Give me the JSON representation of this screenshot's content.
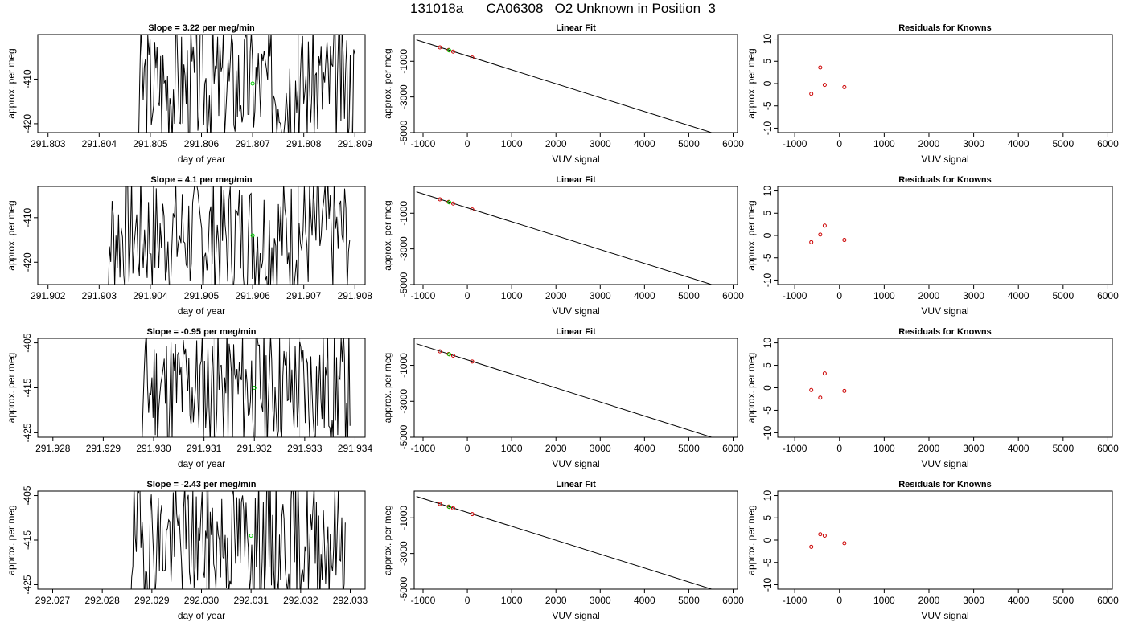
{
  "page": {
    "title": "131018a      CA06308   O2 Unknown in Position  3"
  },
  "chart_data": [
    {
      "type": "line",
      "row": 1,
      "col": 1,
      "title": "Slope =  3.22  per meg/min",
      "xlabel": "day of year",
      "ylabel": "approx. per meg",
      "xlim": [
        291.8028,
        291.8092
      ],
      "ylim": [
        -422,
        -400
      ],
      "xticks": [
        "291.803",
        "291.804",
        "291.805",
        "291.806",
        "291.807",
        "291.808",
        "291.809"
      ],
      "yticks": [
        "-410",
        "-420"
      ],
      "vlines": [
        291.8062,
        291.8079
      ],
      "series_color": "#000000",
      "series": [
        {
          "x_start": 291.8047,
          "x_end": 291.809,
          "seed": 3,
          "values_note": "dense noisy trace"
        }
      ],
      "markers": [
        {
          "x": 291.807,
          "y": -411,
          "color": "#00cc00"
        }
      ]
    },
    {
      "type": "scatter",
      "row": 1,
      "col": 2,
      "title": "Linear Fit",
      "xlabel": "VUV signal",
      "ylabel": "approx. per meg",
      "xlim": [
        -1200,
        6100
      ],
      "ylim": [
        -5000,
        500
      ],
      "xticks": [
        "-1000",
        "0",
        "1000",
        "2000",
        "3000",
        "4000",
        "5000",
        "6000"
      ],
      "yticks": [
        "-1000",
        "-3000",
        "-5000"
      ],
      "line": {
        "x": [
          -1150,
          5900
        ],
        "y": [
          200,
          -5300
        ]
      },
      "points": [
        {
          "x": -620,
          "y": -220
        },
        {
          "x": -420,
          "y": -370
        },
        {
          "x": -320,
          "y": -460
        },
        {
          "x": 110,
          "y": -790
        }
      ],
      "unknown": {
        "x": -410,
        "y": -390
      }
    },
    {
      "type": "scatter",
      "row": 1,
      "col": 3,
      "title": "Residuals for Knowns",
      "xlabel": "VUV signal",
      "ylabel": "approx. per meg",
      "xlim": [
        -1380,
        6100
      ],
      "ylim": [
        -11,
        11
      ],
      "xticks": [
        "-1000",
        "0",
        "1000",
        "2000",
        "3000",
        "4000",
        "5000",
        "6000"
      ],
      "yticks": [
        "10",
        "5",
        "0",
        "-5",
        "-10"
      ],
      "points": [
        {
          "x": -630,
          "y": -2.3
        },
        {
          "x": -430,
          "y": 3.6
        },
        {
          "x": -330,
          "y": -0.3
        },
        {
          "x": 110,
          "y": -0.8
        }
      ]
    },
    {
      "type": "line",
      "row": 2,
      "col": 1,
      "title": "Slope =  4.1  per meg/min",
      "xlabel": "day of year",
      "ylabel": "approx. per meg",
      "xlim": [
        291.9018,
        291.9082
      ],
      "ylim": [
        -425,
        -403
      ],
      "xticks": [
        "291.902",
        "291.903",
        "291.904",
        "291.905",
        "291.906",
        "291.907",
        "291.908"
      ],
      "yticks": [
        "-410",
        "-420"
      ],
      "vlines": [
        291.9052,
        291.9069
      ],
      "series_color": "#000000",
      "series": [
        {
          "x_start": 291.9031,
          "x_end": 291.9079,
          "seed": 7
        }
      ],
      "markers": [
        {
          "x": 291.906,
          "y": -414,
          "color": "#00cc00"
        }
      ]
    },
    {
      "type": "scatter",
      "row": 2,
      "col": 2,
      "title": "Linear Fit",
      "xlabel": "VUV signal",
      "ylabel": "approx. per meg",
      "xlim": [
        -1200,
        6100
      ],
      "ylim": [
        -5000,
        500
      ],
      "xticks": [
        "-1000",
        "0",
        "1000",
        "2000",
        "3000",
        "4000",
        "5000",
        "6000"
      ],
      "yticks": [
        "-1000",
        "-3000",
        "-5000"
      ],
      "line": {
        "x": [
          -1150,
          5900
        ],
        "y": [
          200,
          -5300
        ]
      },
      "points": [
        {
          "x": -620,
          "y": -220
        },
        {
          "x": -420,
          "y": -370
        },
        {
          "x": -320,
          "y": -460
        },
        {
          "x": 110,
          "y": -790
        }
      ],
      "unknown": {
        "x": -410,
        "y": -390
      }
    },
    {
      "type": "scatter",
      "row": 2,
      "col": 3,
      "title": "Residuals for Knowns",
      "xlabel": "VUV signal",
      "ylabel": "approx. per meg",
      "xlim": [
        -1380,
        6100
      ],
      "ylim": [
        -11,
        11
      ],
      "xticks": [
        "-1000",
        "0",
        "1000",
        "2000",
        "3000",
        "4000",
        "5000",
        "6000"
      ],
      "yticks": [
        "10",
        "5",
        "0",
        "-5",
        "-10"
      ],
      "points": [
        {
          "x": -630,
          "y": -1.5
        },
        {
          "x": -430,
          "y": 0.2
        },
        {
          "x": -330,
          "y": 2.2
        },
        {
          "x": 110,
          "y": -1.0
        }
      ]
    },
    {
      "type": "line",
      "row": 3,
      "col": 1,
      "title": "Slope =  -0.95  per meg/min",
      "xlabel": "day of year",
      "ylabel": "approx. per meg",
      "xlim": [
        291.9277,
        291.9342
      ],
      "ylim": [
        -426,
        -404
      ],
      "xticks": [
        "291.928",
        "291.929",
        "291.930",
        "291.931",
        "291.932",
        "291.933",
        "291.934"
      ],
      "yticks": [
        "-405",
        "-415",
        "-425"
      ],
      "vlines": [
        291.9312,
        291.9329
      ],
      "series_color": "#000000",
      "series": [
        {
          "x_start": 291.9297,
          "x_end": 291.9339,
          "seed": 11
        }
      ],
      "markers": [
        {
          "x": 291.932,
          "y": -415,
          "color": "#00cc00"
        }
      ]
    },
    {
      "type": "scatter",
      "row": 3,
      "col": 2,
      "title": "Linear Fit",
      "xlabel": "VUV signal",
      "ylabel": "approx. per meg",
      "xlim": [
        -1200,
        6100
      ],
      "ylim": [
        -5000,
        500
      ],
      "xticks": [
        "-1000",
        "0",
        "1000",
        "2000",
        "3000",
        "4000",
        "5000",
        "6000"
      ],
      "yticks": [
        "-1000",
        "-3000",
        "-5000"
      ],
      "line": {
        "x": [
          -1150,
          5900
        ],
        "y": [
          200,
          -5300
        ]
      },
      "points": [
        {
          "x": -620,
          "y": -220
        },
        {
          "x": -420,
          "y": -370
        },
        {
          "x": -320,
          "y": -460
        },
        {
          "x": 110,
          "y": -790
        }
      ],
      "unknown": {
        "x": -410,
        "y": -390
      }
    },
    {
      "type": "scatter",
      "row": 3,
      "col": 3,
      "title": "Residuals for Knowns",
      "xlabel": "VUV signal",
      "ylabel": "approx. per meg",
      "xlim": [
        -1380,
        6100
      ],
      "ylim": [
        -11,
        11
      ],
      "xticks": [
        "-1000",
        "0",
        "1000",
        "2000",
        "3000",
        "4000",
        "5000",
        "6000"
      ],
      "yticks": [
        "10",
        "5",
        "0",
        "-5",
        "-10"
      ],
      "points": [
        {
          "x": -630,
          "y": -0.5
        },
        {
          "x": -430,
          "y": -2.2
        },
        {
          "x": -330,
          "y": 3.2
        },
        {
          "x": 110,
          "y": -0.7
        }
      ]
    },
    {
      "type": "line",
      "row": 4,
      "col": 1,
      "title": "Slope =  -2.43  per meg/min",
      "xlabel": "day of year",
      "ylabel": "approx. per meg",
      "xlim": [
        292.0267,
        292.0333
      ],
      "ylim": [
        -426,
        -404
      ],
      "xticks": [
        "292.027",
        "292.028",
        "292.029",
        "292.030",
        "292.031",
        "292.032",
        "292.033"
      ],
      "yticks": [
        "-405",
        "-415",
        "-425"
      ],
      "vlines": [
        292.0301,
        292.0318
      ],
      "series_color": "#000000",
      "series": [
        {
          "x_start": 292.0285,
          "x_end": 292.0329,
          "seed": 19
        }
      ],
      "markers": [
        {
          "x": 292.031,
          "y": -414,
          "color": "#00cc00"
        }
      ]
    },
    {
      "type": "scatter",
      "row": 4,
      "col": 2,
      "title": "Linear Fit",
      "xlabel": "VUV signal",
      "ylabel": "approx. per meg",
      "xlim": [
        -1200,
        6100
      ],
      "ylim": [
        -5000,
        500
      ],
      "xticks": [
        "-1000",
        "0",
        "1000",
        "2000",
        "3000",
        "4000",
        "5000",
        "6000"
      ],
      "yticks": [
        "-1000",
        "-3000",
        "-5000"
      ],
      "line": {
        "x": [
          -1150,
          5900
        ],
        "y": [
          200,
          -5300
        ]
      },
      "points": [
        {
          "x": -620,
          "y": -220
        },
        {
          "x": -420,
          "y": -370
        },
        {
          "x": -320,
          "y": -460
        },
        {
          "x": 110,
          "y": -790
        }
      ],
      "unknown": {
        "x": -410,
        "y": -390
      }
    },
    {
      "type": "scatter",
      "row": 4,
      "col": 3,
      "title": "Residuals for Knowns",
      "xlabel": "VUV signal",
      "ylabel": "approx. per meg",
      "xlim": [
        -1380,
        6100
      ],
      "ylim": [
        -11,
        11
      ],
      "xticks": [
        "-1000",
        "0",
        "1000",
        "2000",
        "3000",
        "4000",
        "5000",
        "6000"
      ],
      "yticks": [
        "10",
        "5",
        "0",
        "-5",
        "-10"
      ],
      "points": [
        {
          "x": -630,
          "y": -1.5
        },
        {
          "x": -430,
          "y": 1.3
        },
        {
          "x": -330,
          "y": 1.0
        },
        {
          "x": 110,
          "y": -0.7
        }
      ]
    }
  ]
}
